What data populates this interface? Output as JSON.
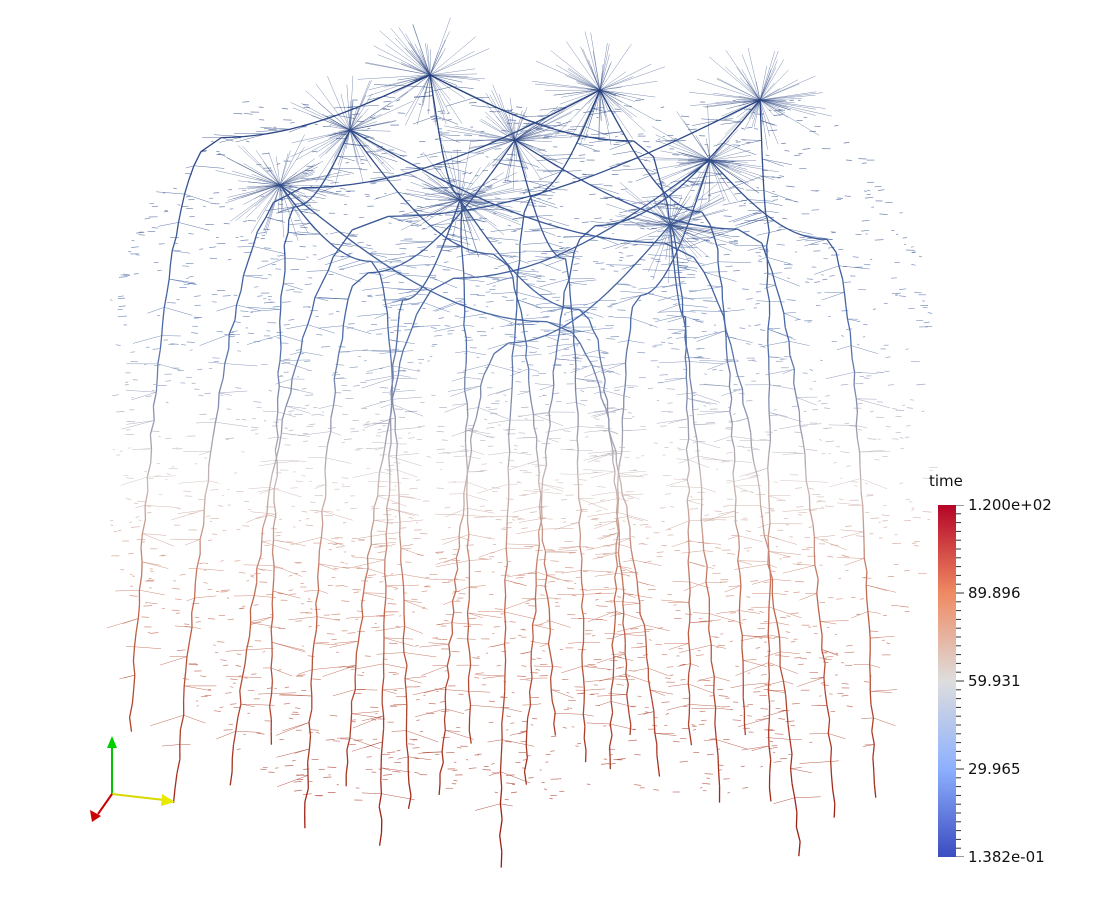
{
  "scalar_bar": {
    "title": "time",
    "labels": [
      "1.200e+02",
      "89.896",
      "59.931",
      "29.965",
      "1.382e-01"
    ],
    "range": [
      0.1382,
      120.0
    ],
    "colormap": {
      "low": "#3b4cc0",
      "mid": "#dddddd",
      "high": "#b40426"
    }
  },
  "colors": {
    "old_root": "#2b3f7a",
    "young_root": "#a52a1a",
    "axis_x": "#e8e800",
    "axis_y": "#00c000",
    "axis_z": "#cc0000"
  },
  "orientation_axes": {
    "icon": "xyz-orientation-axes-icon"
  }
}
